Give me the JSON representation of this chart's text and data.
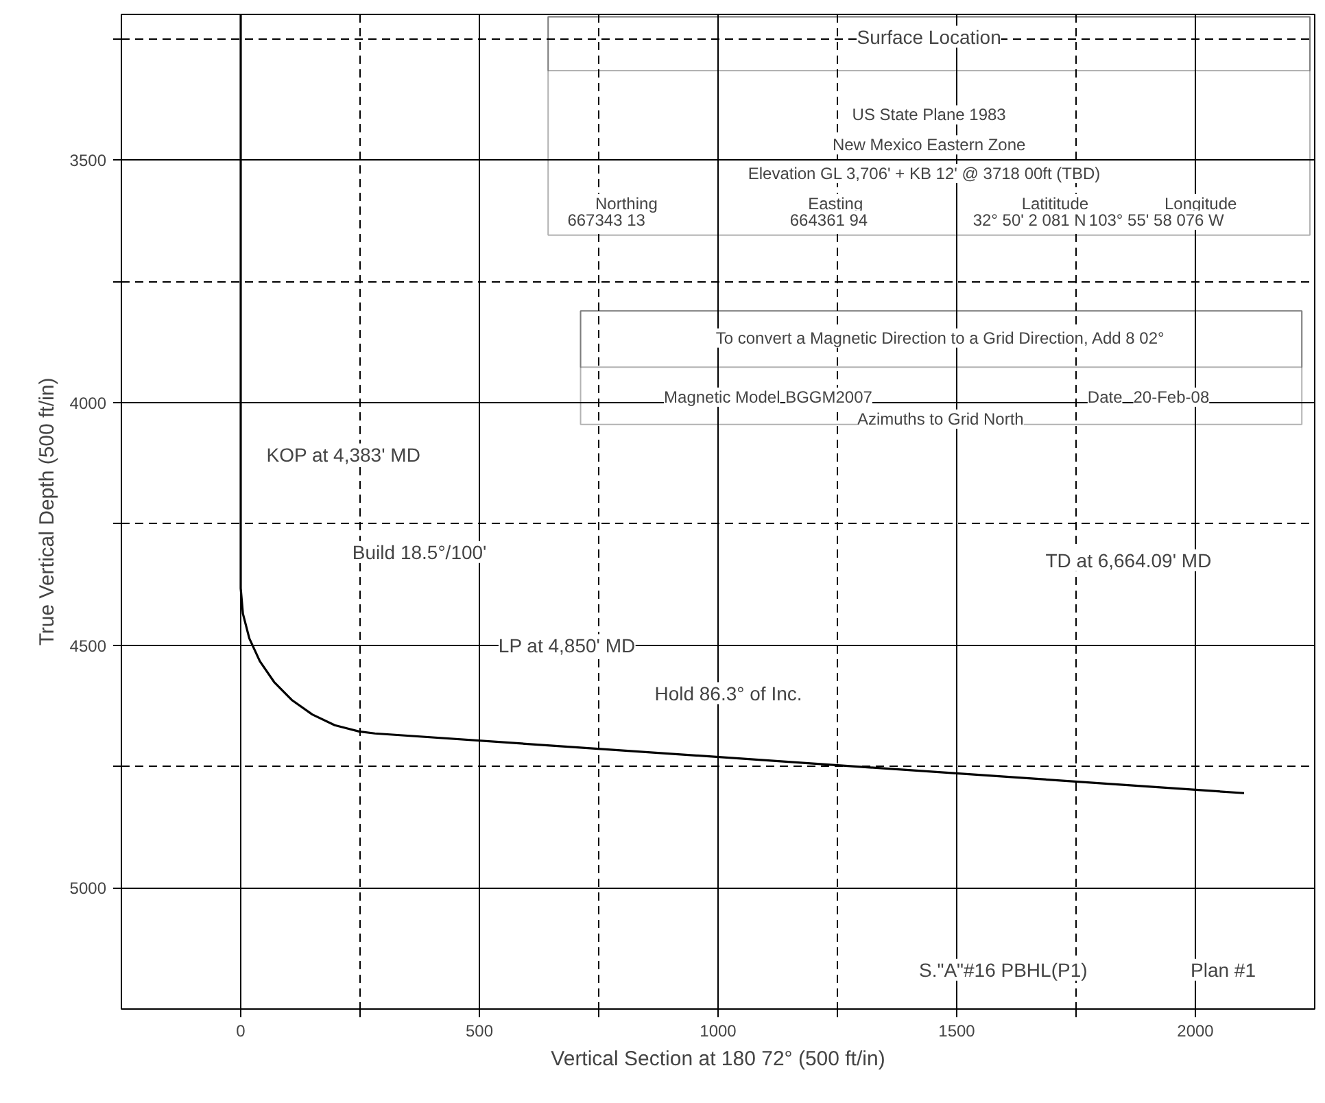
{
  "chart_data": {
    "type": "line",
    "xlabel": "Vertical Section at 180 72° (500 ft/in)",
    "ylabel": "True Vertical Depth (500 ft/in)",
    "x": [
      0,
      0,
      4.6,
      18,
      40,
      70,
      107,
      150,
      197,
      248,
      281,
      2102
    ],
    "series": [
      {
        "color": "#000000",
        "values": [
          3200,
          4383,
          4435,
          4486,
          4533,
          4576,
          4613,
          4643,
          4665,
          4678,
          4682,
          4805
        ]
      }
    ],
    "xlim": [
      -250,
      2250
    ],
    "ylim": [
      5250,
      3200
    ],
    "xticks": [
      0,
      {
        "value": 250,
        "label": null
      },
      500,
      {
        "value": 750,
        "label": null
      },
      1000,
      {
        "value": 1250,
        "label": null
      },
      1500,
      {
        "value": 1750,
        "label": null
      },
      2000
    ],
    "yticks": [
      {
        "value": 3250,
        "label": null
      },
      3500,
      {
        "value": 3750,
        "label": null
      },
      4000,
      {
        "value": 4250,
        "label": null
      },
      4500,
      {
        "value": 4750,
        "label": null
      },
      5000
    ],
    "grid": true,
    "line_style": "solid",
    "annotations": [
      "Surface Location",
      "US State Plane 1983",
      "New Mexico Eastern Zone",
      "Elevation   GL 3,706' + KB 12' @ 3718 00ft (TBD)",
      "Northing",
      "667343 13",
      "Easting",
      "664361 94",
      "Latititude",
      "32° 50' 2 081 N",
      "Longitude",
      "103° 55' 58 076 W",
      "To convert a Magnetic Direction to a Grid Direction, Add 8 02°",
      "Magnetic Model",
      "BGGM2007",
      "Date",
      "20-Feb-08",
      "Azimuths to Grid North",
      "KOP at 4,383' MD",
      "Build 18.5°/100'",
      "LP at 4,850' MD",
      "Hold 86.3° of Inc.",
      "TD at 6,664.09' MD",
      "S.\"A\"#16 PBHL(P1)",
      "Plan #1"
    ]
  }
}
